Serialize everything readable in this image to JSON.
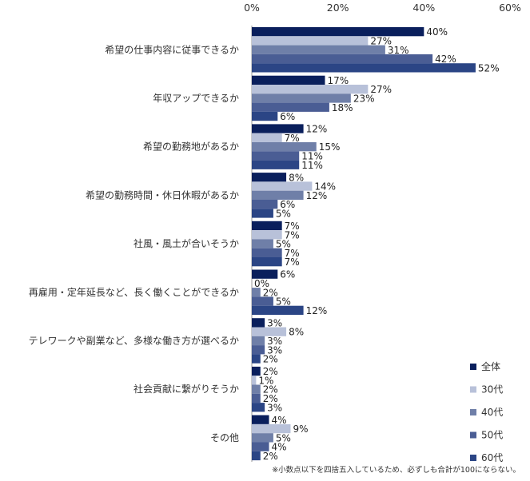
{
  "chart_data": {
    "type": "bar",
    "orientation": "horizontal",
    "categories": [
      "希望の仕事内容に従事できるか",
      "年収アップできるか",
      "希望の勤務地があるか",
      "希望の勤務時間・休日休暇があるか",
      "社風・風土が合いそうか",
      "再雇用・定年延長など、長く働くことができるか",
      "テレワークや副業など、多様な働き方が選べるか",
      "社会貢献に繋がりそうか",
      "その他"
    ],
    "series": [
      {
        "name": "全体",
        "color": "#0a1f5c",
        "values": [
          40,
          17,
          12,
          8,
          7,
          6,
          3,
          2,
          4
        ]
      },
      {
        "name": "30代",
        "color": "#b8c1d9",
        "values": [
          27,
          27,
          7,
          14,
          7,
          0,
          8,
          1,
          9
        ]
      },
      {
        "name": "40代",
        "color": "#6f7fa8",
        "values": [
          31,
          23,
          15,
          12,
          5,
          2,
          3,
          2,
          5
        ]
      },
      {
        "name": "50代",
        "color": "#4a5d94",
        "values": [
          42,
          18,
          11,
          6,
          7,
          5,
          3,
          2,
          4
        ]
      },
      {
        "name": "60代",
        "color": "#2b4585",
        "values": [
          52,
          6,
          11,
          5,
          7,
          12,
          2,
          3,
          2
        ]
      }
    ],
    "value_suffix": "%",
    "xlim": [
      0,
      60
    ],
    "xticks": [
      "0%",
      "20%",
      "40%",
      "60%"
    ],
    "legend_position": "bottom-right",
    "grid": false
  },
  "footnote": "※小数点以下を四捨五入しているため、必ずしも合計が100にならない。"
}
